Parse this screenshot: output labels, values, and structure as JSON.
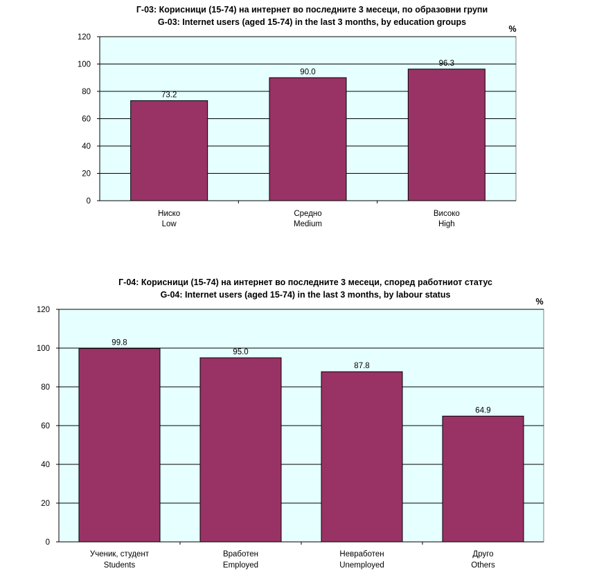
{
  "chart_data": [
    {
      "type": "bar",
      "title": "Г-03: Корисници (15-74) на интернет во последните 3 месеци, по образовни групи",
      "subtitle": "G-03: Internet users (aged 15-74) in the last 3 months, by education groups",
      "unit": "%",
      "categories": [
        [
          "Ниско",
          "Low"
        ],
        [
          "Средно",
          "Medium"
        ],
        [
          "Високо",
          "High"
        ]
      ],
      "values": [
        73.2,
        90.0,
        96.3
      ],
      "value_labels": [
        "73.2",
        "90.0",
        "96.3"
      ],
      "ylim": [
        0,
        120
      ],
      "yticks": [
        0,
        20,
        40,
        60,
        80,
        100,
        120
      ],
      "grid": true,
      "bar_color": "#993366",
      "plot_bg": "#e6ffff"
    },
    {
      "type": "bar",
      "title": "Г-04: Корисници (15-74) на интернет во последните 3 месеци, според работниот статус",
      "subtitle": "G-04: Internet users (aged 15-74) in the last 3 months, by labour status",
      "unit": "%",
      "categories": [
        [
          "Ученик, студент",
          "Students"
        ],
        [
          "Вработен",
          "Employed"
        ],
        [
          "Невработен",
          "Unemployed"
        ],
        [
          "Друго",
          "Others"
        ]
      ],
      "values": [
        99.8,
        95.0,
        87.8,
        64.9
      ],
      "value_labels": [
        "99.8",
        "95.0",
        "87.8",
        "64.9"
      ],
      "ylim": [
        0,
        120
      ],
      "yticks": [
        0,
        20,
        40,
        60,
        80,
        100,
        120
      ],
      "grid": true,
      "bar_color": "#993366",
      "plot_bg": "#e6ffff"
    }
  ]
}
